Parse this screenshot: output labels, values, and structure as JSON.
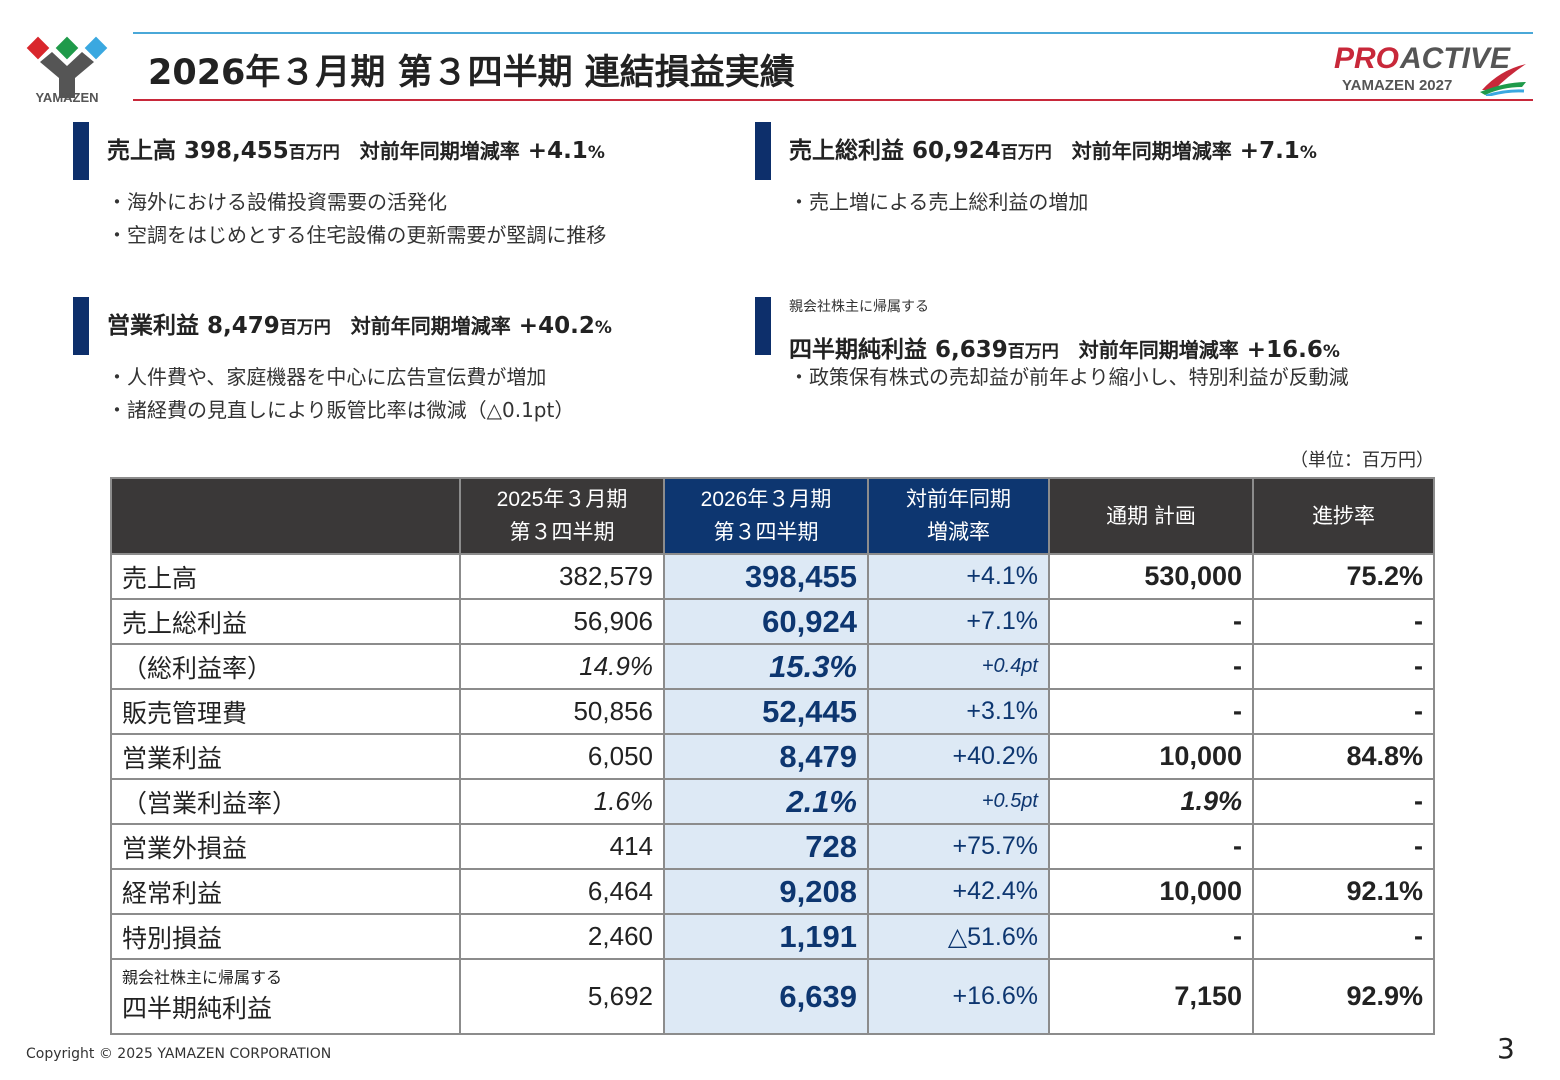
{
  "brand": {
    "logo_text": "YAMAZEN",
    "logo_colors": [
      "#d9262c",
      "#1f9a4a",
      "#3aa8e0",
      "#555555"
    ],
    "program_logo": "PROACTIVE YAMAZEN 2027"
  },
  "title": "2026年３月期 第３四半期 連結損益実績",
  "summaries": [
    {
      "prefix": "",
      "label": "売上高",
      "value": "398,455",
      "unit": "百万円",
      "yoy_label": "対前年同期増減率",
      "yoy": "+4.1",
      "pct": "%",
      "bullets": [
        "・海外における設備投資需要の活発化",
        "・空調をはじめとする住宅設備の更新需要が堅調に推移"
      ]
    },
    {
      "prefix": "",
      "label": "売上総利益",
      "value": "60,924",
      "unit": "百万円",
      "yoy_label": "対前年同期増減率",
      "yoy": "+7.1",
      "pct": "%",
      "bullets": [
        "・売上増による売上総利益の増加"
      ]
    },
    {
      "prefix": "",
      "label": "営業利益",
      "value": "8,479",
      "unit": "百万円",
      "yoy_label": "対前年同期増減率",
      "yoy": "+40.2",
      "pct": "%",
      "bullets": [
        "・人件費や、家庭機器を中心に広告宣伝費が増加",
        "・諸経費の見直しにより販管比率は微減（△0.1pt）"
      ]
    },
    {
      "prefix": "親会社株主に帰属する",
      "label": "四半期純利益",
      "value": "6,639",
      "unit": "百万円",
      "yoy_label": "対前年同期増減率",
      "yoy": "+16.6",
      "pct": "%",
      "bullets": [
        "・政策保有株式の売却益が前年より縮小し、特別利益が反動減"
      ]
    }
  ],
  "unit_note": "（単位：百万円）",
  "table": {
    "headers": [
      "",
      "2025年３月期\n第３四半期",
      "2026年３月期\n第３四半期",
      "対前年同期\n増減率",
      "通期 計画",
      "進捗率"
    ],
    "rows": [
      {
        "prefix": "",
        "label": "売上高",
        "prev": "382,579",
        "cur": "398,455",
        "yoy": "+4.1%",
        "plan": "530,000",
        "progress": "75.2%",
        "italic": false
      },
      {
        "prefix": "",
        "label": "売上総利益",
        "prev": "56,906",
        "cur": "60,924",
        "yoy": "+7.1%",
        "plan": "-",
        "progress": "-",
        "italic": false
      },
      {
        "prefix": "",
        "label": "（総利益率）",
        "prev": "14.9%",
        "cur": "15.3%",
        "yoy": "+0.4pt",
        "plan": "-",
        "progress": "-",
        "italic": true
      },
      {
        "prefix": "",
        "label": "販売管理費",
        "prev": "50,856",
        "cur": "52,445",
        "yoy": "+3.1%",
        "plan": "-",
        "progress": "-",
        "italic": false
      },
      {
        "prefix": "",
        "label": "営業利益",
        "prev": "6,050",
        "cur": "8,479",
        "yoy": "+40.2%",
        "plan": "10,000",
        "progress": "84.8%",
        "italic": false
      },
      {
        "prefix": "",
        "label": "（営業利益率）",
        "prev": "1.6%",
        "cur": "2.1%",
        "yoy": "+0.5pt",
        "plan": "1.9%",
        "progress": "-",
        "italic": true
      },
      {
        "prefix": "",
        "label": "営業外損益",
        "prev": "414",
        "cur": "728",
        "yoy": "+75.7%",
        "plan": "-",
        "progress": "-",
        "italic": false
      },
      {
        "prefix": "",
        "label": "経常利益",
        "prev": "6,464",
        "cur": "9,208",
        "yoy": "+42.4%",
        "plan": "10,000",
        "progress": "92.1%",
        "italic": false
      },
      {
        "prefix": "",
        "label": "特別損益",
        "prev": "2,460",
        "cur": "1,191",
        "yoy": "△51.6%",
        "plan": "-",
        "progress": "-",
        "italic": false
      },
      {
        "prefix": "親会社株主に帰属する",
        "label": "四半期純利益",
        "prev": "5,692",
        "cur": "6,639",
        "yoy": "+16.6%",
        "plan": "7,150",
        "progress": "92.9%",
        "italic": false
      }
    ]
  },
  "footer": {
    "copyright": "Copyright © 2025 YAMAZEN CORPORATION",
    "page": "3"
  }
}
